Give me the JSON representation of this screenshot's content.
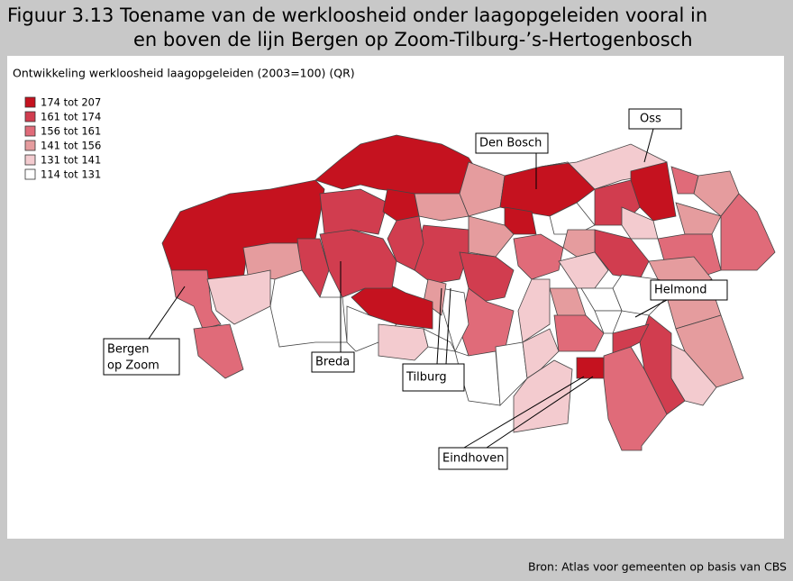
{
  "figure": {
    "title_line1": "Figuur 3.13 Toename van de werkloosheid onder laagopgeleiden vooral in",
    "title_line2": "en boven de lijn Bergen op Zoom-Tilburg-’s-Hertogenbosch",
    "subtitle": "Ontwikkeling werkloosheid laagopgeleiden (2003=100) (QR)",
    "legend": [
      {
        "label": "174 tot 207",
        "color": "#c5121f"
      },
      {
        "label": "161 tot 174",
        "color": "#d13d4f"
      },
      {
        "label": "156 tot 161",
        "color": "#e06b79"
      },
      {
        "label": "141 tot 156",
        "color": "#e59c9e"
      },
      {
        "label": "131 tot 141",
        "color": "#f3cbcf"
      },
      {
        "label": "114 tot 131",
        "color": "#ffffff"
      }
    ],
    "places": {
      "den_bosch": "Den Bosch",
      "oss": "Oss",
      "helmond": "Helmond",
      "bergen_op_zoom": [
        "Bergen",
        "op Zoom"
      ],
      "breda": "Breda",
      "tilburg": "Tilburg",
      "eindhoven": "Eindhoven"
    },
    "source": "Bron: Atlas voor gemeenten op basis van CBS"
  }
}
